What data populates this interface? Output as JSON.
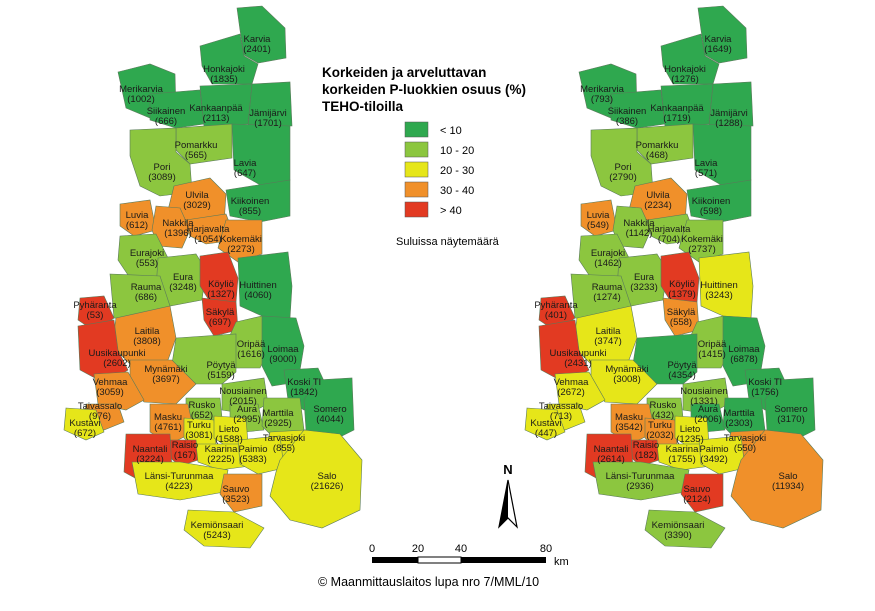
{
  "title": [
    "Korkeiden ja arveluttavan",
    "korkeiden P-luokkien osuus (%)",
    "TEHO-tiloilla"
  ],
  "legend": [
    {
      "label": "< 10",
      "color": "#2fa84f"
    },
    {
      "label": "10 - 20",
      "color": "#8cc63f"
    },
    {
      "label": "20 - 30",
      "color": "#e6e619"
    },
    {
      "label": "30 - 40",
      "color": "#f0902a"
    },
    {
      "label": "> 40",
      "color": "#e23a22"
    }
  ],
  "note": "Suluissa näytemäärä",
  "north_label": "N",
  "scale": {
    "ticks": [
      "0",
      "20",
      "40",
      "80"
    ],
    "unit": "km"
  },
  "copyright": "© Maanmittauslaitos lupa nro 7/MML/10",
  "maps": [
    {
      "municipalities": [
        {
          "name": "Karvia",
          "count": "(2401)",
          "class": 0
        },
        {
          "name": "Honkajoki",
          "count": "(1835)",
          "class": 0
        },
        {
          "name": "Merikarvia",
          "count": "(1002)",
          "class": 0
        },
        {
          "name": "Siikainen",
          "count": "(666)",
          "class": 0
        },
        {
          "name": "Kankaanpää",
          "count": "(2113)",
          "class": 0
        },
        {
          "name": "Jämijärvi",
          "count": "(1701)",
          "class": 0
        },
        {
          "name": "Pomarkku",
          "count": "(565)",
          "class": 1
        },
        {
          "name": "Pori",
          "count": "(3089)",
          "class": 1
        },
        {
          "name": "Lavia",
          "count": "(647)",
          "class": 0
        },
        {
          "name": "Ulvila",
          "count": "(3029)",
          "class": 3
        },
        {
          "name": "Kiikoinen",
          "count": "(855)",
          "class": 0
        },
        {
          "name": "Luvia",
          "count": "(612)",
          "class": 3
        },
        {
          "name": "Nakkila",
          "count": "(1396)",
          "class": 3
        },
        {
          "name": "Harjavalta",
          "count": "(1054)",
          "class": 3
        },
        {
          "name": "Kokemäki",
          "count": "(2273)",
          "class": 3
        },
        {
          "name": "Eurajoki",
          "count": "(553)",
          "class": 1
        },
        {
          "name": "Eura",
          "count": "(3248)",
          "class": 1
        },
        {
          "name": "Köyliö",
          "count": "(1327)",
          "class": 4
        },
        {
          "name": "Huittinen",
          "count": "(4060)",
          "class": 0
        },
        {
          "name": "Rauma",
          "count": "(686)",
          "class": 1
        },
        {
          "name": "Säkylä",
          "count": "(697)",
          "class": 4
        },
        {
          "name": "Pyhäranta",
          "count": "(53)",
          "class": 4
        },
        {
          "name": "Laitila",
          "count": "(3808)",
          "class": 3
        },
        {
          "name": "Oripää",
          "count": "(1616)",
          "class": 1
        },
        {
          "name": "Loimaa",
          "count": "(9000)",
          "class": 0
        },
        {
          "name": "Uusikaupunki",
          "count": "(2602)",
          "class": 4
        },
        {
          "name": "Pöytyä",
          "count": "(5159)",
          "class": 1
        },
        {
          "name": "Mynämäki",
          "count": "(3697)",
          "class": 3
        },
        {
          "name": "Vehmaa",
          "count": "(3059)",
          "class": 3
        },
        {
          "name": "Nousiainen",
          "count": "(2015)",
          "class": 1
        },
        {
          "name": "Koski Tl",
          "count": "(1842)",
          "class": 0
        },
        {
          "name": "Taivassalo",
          "count": "(976)",
          "class": 3
        },
        {
          "name": "Rusko",
          "count": "(652)",
          "class": 1
        },
        {
          "name": "Aura",
          "count": "(2995)",
          "class": 1
        },
        {
          "name": "Marttila",
          "count": "(2925)",
          "class": 1
        },
        {
          "name": "Somero",
          "count": "(4044)",
          "class": 0
        },
        {
          "name": "Kustavi",
          "count": "(672)",
          "class": 2
        },
        {
          "name": "Masku",
          "count": "(4761)",
          "class": 3
        },
        {
          "name": "Turku",
          "count": "(3081)",
          "class": 2
        },
        {
          "name": "Tarvasjoki",
          "count": "(855)",
          "class": 2
        },
        {
          "name": "Lieto",
          "count": "(1588)",
          "class": 2
        },
        {
          "name": "Raisio",
          "count": "(167)",
          "class": 4
        },
        {
          "name": "Naantali",
          "count": "(3224)",
          "class": 4
        },
        {
          "name": "Kaarina",
          "count": "(2225)",
          "class": 2
        },
        {
          "name": "Paimio",
          "count": "(5383)",
          "class": 2
        },
        {
          "name": "Salo",
          "count": "(21626)",
          "class": 2
        },
        {
          "name": "Länsi-Turunmaa",
          "count": "(4223)",
          "class": 2
        },
        {
          "name": "Sauvo",
          "count": "(3523)",
          "class": 3
        },
        {
          "name": "Kemiönsaari",
          "count": "(5243)",
          "class": 2
        }
      ]
    },
    {
      "municipalities": [
        {
          "name": "Karvia",
          "count": "(1649)",
          "class": 0
        },
        {
          "name": "Honkajoki",
          "count": "(1276)",
          "class": 0
        },
        {
          "name": "Merikarvia",
          "count": "(793)",
          "class": 0
        },
        {
          "name": "Siikainen",
          "count": "(386)",
          "class": 0
        },
        {
          "name": "Kankaanpää",
          "count": "(1719)",
          "class": 0
        },
        {
          "name": "Jämijärvi",
          "count": "(1288)",
          "class": 0
        },
        {
          "name": "Pomarkku",
          "count": "(468)",
          "class": 1
        },
        {
          "name": "Pori",
          "count": "(2790)",
          "class": 1
        },
        {
          "name": "Lavia",
          "count": "(571)",
          "class": 0
        },
        {
          "name": "Ulvila",
          "count": "(2234)",
          "class": 3
        },
        {
          "name": "Kiikoinen",
          "count": "(598)",
          "class": 0
        },
        {
          "name": "Luvia",
          "count": "(549)",
          "class": 3
        },
        {
          "name": "Nakkila",
          "count": "(1142)",
          "class": 1
        },
        {
          "name": "Harjavalta",
          "count": "(704)",
          "class": 1
        },
        {
          "name": "Kokemäki",
          "count": "(2737)",
          "class": 1
        },
        {
          "name": "Eurajoki",
          "count": "(1462)",
          "class": 1
        },
        {
          "name": "Eura",
          "count": "(3233)",
          "class": 1
        },
        {
          "name": "Köyliö",
          "count": "(1379)",
          "class": 4
        },
        {
          "name": "Huittinen",
          "count": "(3243)",
          "class": 2
        },
        {
          "name": "Rauma",
          "count": "(1274)",
          "class": 1
        },
        {
          "name": "Säkylä",
          "count": "(558)",
          "class": 3
        },
        {
          "name": "Pyhäranta",
          "count": "(401)",
          "class": 4
        },
        {
          "name": "Laitila",
          "count": "(3747)",
          "class": 2
        },
        {
          "name": "Oripää",
          "count": "(1415)",
          "class": 1
        },
        {
          "name": "Loimaa",
          "count": "(6878)",
          "class": 0
        },
        {
          "name": "Uusikaupunki",
          "count": "(2431)",
          "class": 4
        },
        {
          "name": "Pöytyä",
          "count": "(4354)",
          "class": 0
        },
        {
          "name": "Mynämäki",
          "count": "(3008)",
          "class": 2
        },
        {
          "name": "Vehmaa",
          "count": "(2672)",
          "class": 2
        },
        {
          "name": "Nousiainen",
          "count": "(1331)",
          "class": 1
        },
        {
          "name": "Koski Tl",
          "count": "(1756)",
          "class": 0
        },
        {
          "name": "Taivassalo",
          "count": "(713)",
          "class": 2
        },
        {
          "name": "Rusko",
          "count": "(432)",
          "class": 1
        },
        {
          "name": "Aura",
          "count": "(2006)",
          "class": 0
        },
        {
          "name": "Marttila",
          "count": "(2303)",
          "class": 0
        },
        {
          "name": "Somero",
          "count": "(3170)",
          "class": 0
        },
        {
          "name": "Kustavi",
          "count": "(447)",
          "class": 2
        },
        {
          "name": "Masku",
          "count": "(3542)",
          "class": 3
        },
        {
          "name": "Turku",
          "count": "(2032)",
          "class": 3
        },
        {
          "name": "Tarvasjoki",
          "count": "(550)",
          "class": 3
        },
        {
          "name": "Lieto",
          "count": "(1235)",
          "class": 2
        },
        {
          "name": "Raisio",
          "count": "(182)",
          "class": 4
        },
        {
          "name": "Naantali",
          "count": "(2614)",
          "class": 4
        },
        {
          "name": "Kaarina",
          "count": "(1755)",
          "class": 2
        },
        {
          "name": "Paimio",
          "count": "(3492)",
          "class": 2
        },
        {
          "name": "Salo",
          "count": "(11934)",
          "class": 3
        },
        {
          "name": "Länsi-Turunmaa",
          "count": "(2936)",
          "class": 1
        },
        {
          "name": "Sauvo",
          "count": "(2124)",
          "class": 4
        },
        {
          "name": "Kemiönsaari",
          "count": "(3390)",
          "class": 1
        }
      ]
    }
  ]
}
